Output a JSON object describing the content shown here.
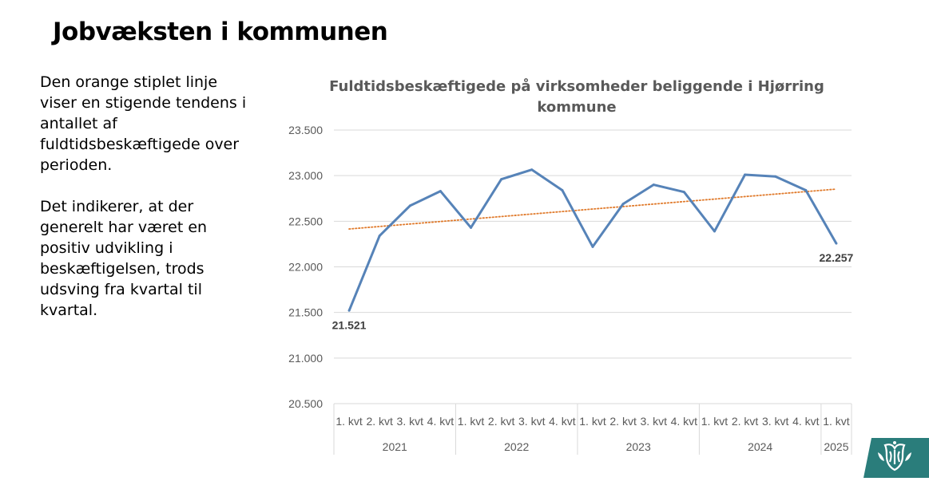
{
  "slide": {
    "title": "Jobvæksten i kommunen",
    "paragraphs": [
      "Den orange stiplet linje viser en stigende tendens i antallet af fuldtidsbeskæftigede over perioden.",
      "Det indikerer, at der generelt har været en positiv udvikling i beskæftigelsen, trods udsving fra kvartal til kvartal."
    ]
  },
  "colors": {
    "series": "#5683b8",
    "trend": "#e07a2b",
    "grid": "#d9d9d9",
    "axis_text": "#595959",
    "title_text": "#595959",
    "logo_bg": "#2a7d7b"
  },
  "logo": {
    "icon": "coat-of-arms-icon"
  },
  "chart_data": {
    "type": "line",
    "title_lines": [
      "Fuldtidsbeskæftigede på virksomheder beliggende i Hjørring",
      "kommune"
    ],
    "ylim": [
      20500,
      23500
    ],
    "yticks": [
      20500,
      21000,
      21500,
      22000,
      22500,
      23000,
      23500
    ],
    "ytick_labels": [
      "20.500",
      "21.000",
      "21.500",
      "22.000",
      "22.500",
      "23.000",
      "23.500"
    ],
    "grid": true,
    "categories": [
      "1. kvt",
      "2. kvt",
      "3. kvt",
      "4. kvt",
      "1. kvt",
      "2. kvt",
      "3. kvt",
      "4. kvt",
      "1. kvt",
      "2. kvt",
      "3. kvt",
      "4. kvt",
      "1. kvt",
      "2. kvt",
      "3. kvt",
      "4. kvt",
      "1. kvt"
    ],
    "groups": [
      {
        "label": "2021",
        "count": 4
      },
      {
        "label": "2022",
        "count": 4
      },
      {
        "label": "2023",
        "count": 4
      },
      {
        "label": "2024",
        "count": 4
      },
      {
        "label": "2025",
        "count": 1
      }
    ],
    "series": [
      {
        "values": [
          21521,
          22340,
          22670,
          22830,
          22430,
          22960,
          23065,
          22840,
          22220,
          22690,
          22900,
          22820,
          22390,
          23010,
          22990,
          22840,
          22257
        ]
      }
    ],
    "trendline": {
      "type": "linear",
      "style": "dotted"
    },
    "data_labels": [
      {
        "index": 0,
        "text": "21.521"
      },
      {
        "index": 16,
        "text": "22.257"
      }
    ]
  }
}
